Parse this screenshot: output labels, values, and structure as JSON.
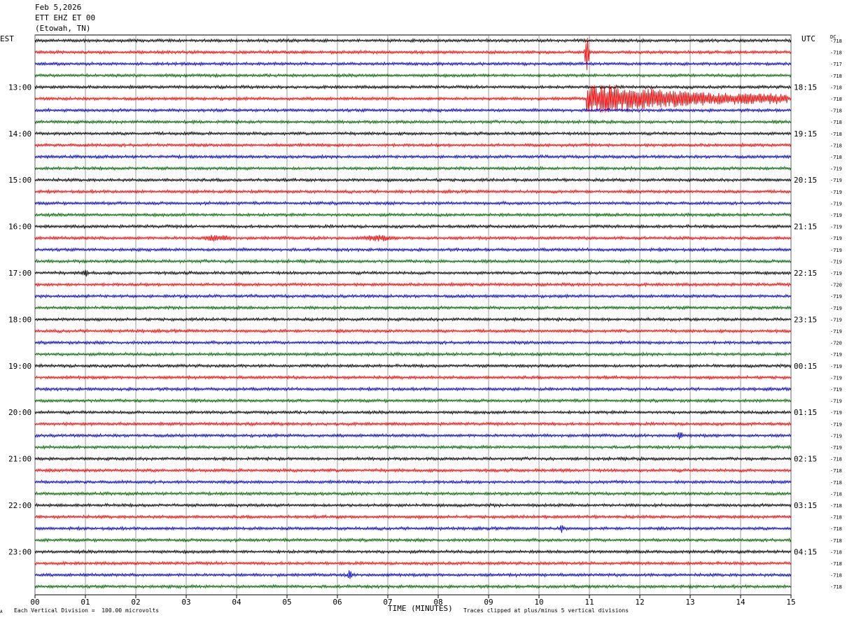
{
  "header": {
    "date": "Feb 5,2026",
    "station": "ETT EHZ ET 00",
    "location": "(Etowah, TN)"
  },
  "left_timezone": "EST",
  "right_timezone": "UTC",
  "dc_label": "DC",
  "footer": {
    "division": "Each Vertical Division =  100.00 microvolts",
    "clipped": "Traces clipped at plus/minus 5 vertical divisions",
    "mark": "A"
  },
  "chart_data": {
    "type": "line",
    "title": "",
    "xlabel": "TIME (MINUTES)",
    "xlim": [
      0,
      15
    ],
    "x_ticks": [
      "00",
      "01",
      "02",
      "03",
      "04",
      "05",
      "06",
      "07",
      "08",
      "09",
      "10",
      "11",
      "12",
      "13",
      "14",
      "15"
    ],
    "trace_colors": [
      "#000000",
      "#ff0000",
      "#0000cc",
      "#006400"
    ],
    "trace_count": 48,
    "left_hour_labels": [
      "13:00",
      "14:00",
      "15:00",
      "16:00",
      "17:00",
      "18:00",
      "19:00",
      "20:00",
      "21:00",
      "22:00",
      "23:00"
    ],
    "right_hour_labels": [
      "18:15",
      "19:15",
      "20:15",
      "21:15",
      "22:15",
      "23:15",
      "00:15",
      "01:15",
      "02:15",
      "03:15",
      "04:15"
    ],
    "hour_label_first_trace": 4,
    "traces_per_hour": 4,
    "dc_offsets": [
      -718,
      -718,
      -717,
      -718,
      -718,
      -718,
      -718,
      -718,
      -718,
      -718,
      -718,
      -719,
      -719,
      -719,
      -719,
      -719,
      -719,
      -719,
      -719,
      -719,
      -719,
      -720,
      -719,
      -719,
      -719,
      -719,
      -720,
      -719,
      -719,
      -719,
      -719,
      -719,
      -719,
      -719,
      -719,
      -719,
      -718,
      -718,
      -718,
      -718,
      -718,
      -718,
      -718,
      -718,
      -718,
      -718,
      -718,
      -718
    ],
    "events": [
      {
        "trace": 1,
        "minute": 10.95,
        "type": "spike"
      },
      {
        "trace": 5,
        "minute": 10.95,
        "type": "earthquake",
        "duration_min": 4.0
      },
      {
        "trace": 17,
        "minute": 3.6,
        "type": "burst"
      },
      {
        "trace": 17,
        "minute": 6.8,
        "type": "burst"
      },
      {
        "trace": 20,
        "minute": 1.0,
        "type": "spike"
      },
      {
        "trace": 34,
        "minute": 12.8,
        "type": "spike"
      },
      {
        "trace": 42,
        "minute": 10.45,
        "type": "spike"
      },
      {
        "trace": 46,
        "minute": 6.25,
        "type": "spike"
      }
    ]
  }
}
